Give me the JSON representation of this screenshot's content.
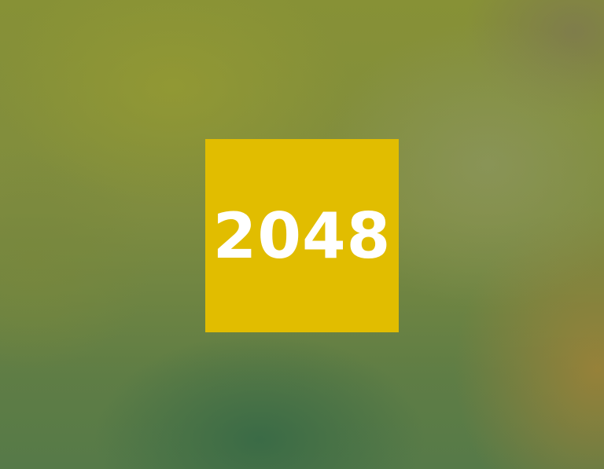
{
  "logo": {
    "text": "2048",
    "tile_color": "#e1bd00",
    "text_color": "#ffffff"
  }
}
